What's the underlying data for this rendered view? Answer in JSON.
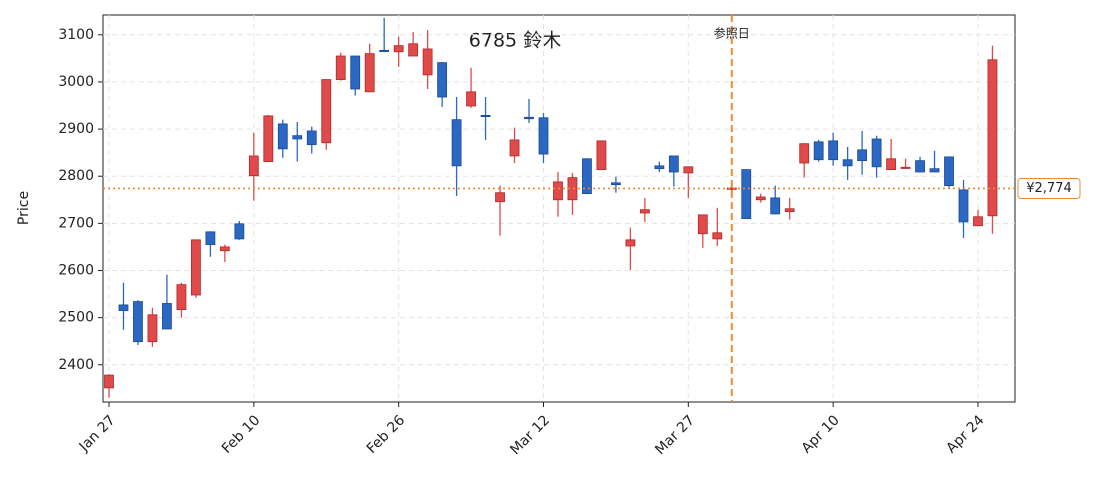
{
  "chart_data": {
    "type": "candlestick",
    "title": "6785  鈴木",
    "ylabel": "Price",
    "categories": [
      "Jan 27",
      null,
      null,
      null,
      null,
      null,
      null,
      null,
      null,
      null,
      "Feb 10",
      null,
      null,
      null,
      null,
      null,
      null,
      null,
      null,
      null,
      "Feb 26",
      null,
      null,
      null,
      null,
      null,
      null,
      null,
      null,
      null,
      "Mar 12",
      null,
      null,
      null,
      null,
      null,
      null,
      null,
      null,
      null,
      "Mar 27",
      null,
      null,
      null,
      null,
      null,
      null,
      null,
      null,
      null,
      "Apr 10",
      null,
      null,
      null,
      null,
      null,
      null,
      null,
      null,
      null,
      "Apr 24",
      null
    ],
    "open": [
      2351,
      2527,
      2534,
      2449,
      2530,
      2517,
      2548,
      2682,
      2642,
      2699,
      2801,
      2831,
      2911,
      2886,
      2896,
      2871,
      3005,
      3055,
      2979,
      3067,
      3064,
      3055,
      3015,
      3041,
      2920,
      2949,
      2929,
      2746,
      2843,
      2925,
      2924,
      2750,
      2750,
      2837,
      2814,
      2786,
      2652,
      2722,
      2822,
      2843,
      2807,
      2678,
      2667,
      2772,
      2814,
      2750,
      2754,
      2725,
      2828,
      2873,
      2875,
      2835,
      2856,
      2879,
      2814,
      2817,
      2833,
      2816,
      2841,
      2771,
      2695,
      2716
    ],
    "high": [
      2380,
      2574,
      2537,
      2521,
      2591,
      2574,
      2666,
      2683,
      2655,
      2705,
      2892,
      2930,
      2920,
      2915,
      2905,
      3006,
      3062,
      3056,
      3081,
      3136,
      3096,
      3106,
      3110,
      3042,
      2968,
      3030,
      2968,
      2780,
      2903,
      2964,
      2934,
      2809,
      2807,
      2838,
      2876,
      2799,
      2691,
      2754,
      2831,
      2844,
      2821,
      2719,
      2733,
      2780,
      2815,
      2763,
      2780,
      2754,
      2870,
      2877,
      2892,
      2862,
      2896,
      2886,
      2879,
      2837,
      2841,
      2854,
      2842,
      2792,
      2729,
      3077
    ],
    "low": [
      2330,
      2474,
      2442,
      2438,
      2475,
      2500,
      2542,
      2629,
      2618,
      2665,
      2748,
      2830,
      2839,
      2831,
      2848,
      2856,
      3003,
      2971,
      2979,
      3063,
      3032,
      3055,
      2985,
      2947,
      2758,
      2945,
      2877,
      2674,
      2828,
      2913,
      2828,
      2714,
      2718,
      2762,
      2813,
      2765,
      2601,
      2703,
      2809,
      2778,
      2754,
      2648,
      2652,
      2768,
      2710,
      2744,
      2719,
      2708,
      2797,
      2831,
      2822,
      2792,
      2803,
      2797,
      2813,
      2816,
      2808,
      2808,
      2776,
      2669,
      2694,
      2678
    ],
    "close": [
      2378,
      2515,
      2449,
      2506,
      2476,
      2570,
      2665,
      2655,
      2650,
      2667,
      2843,
      2928,
      2858,
      2879,
      2867,
      3005,
      3055,
      2985,
      3060,
      3065,
      3077,
      3081,
      3070,
      2968,
      2822,
      2979,
      2927,
      2765,
      2877,
      2922,
      2847,
      2788,
      2797,
      2763,
      2875,
      2782,
      2665,
      2729,
      2816,
      2809,
      2820,
      2718,
      2680,
      2775,
      2710,
      2756,
      2720,
      2731,
      2869,
      2835,
      2835,
      2822,
      2833,
      2820,
      2837,
      2819,
      2809,
      2809,
      2780,
      2703,
      2714,
      3047
    ],
    "up_color": "#e04a4a",
    "down_color": "#2a68c4",
    "ylim": [
      2321,
      3142
    ],
    "yticks": [
      2400,
      2500,
      2600,
      2700,
      2800,
      2900,
      3000,
      3100
    ],
    "grid": true,
    "vline": {
      "x": 43,
      "label": "参照日",
      "color": "#f08a30"
    },
    "hline": {
      "value": 2774,
      "label": "¥2,774",
      "color": "#f08a30"
    }
  }
}
